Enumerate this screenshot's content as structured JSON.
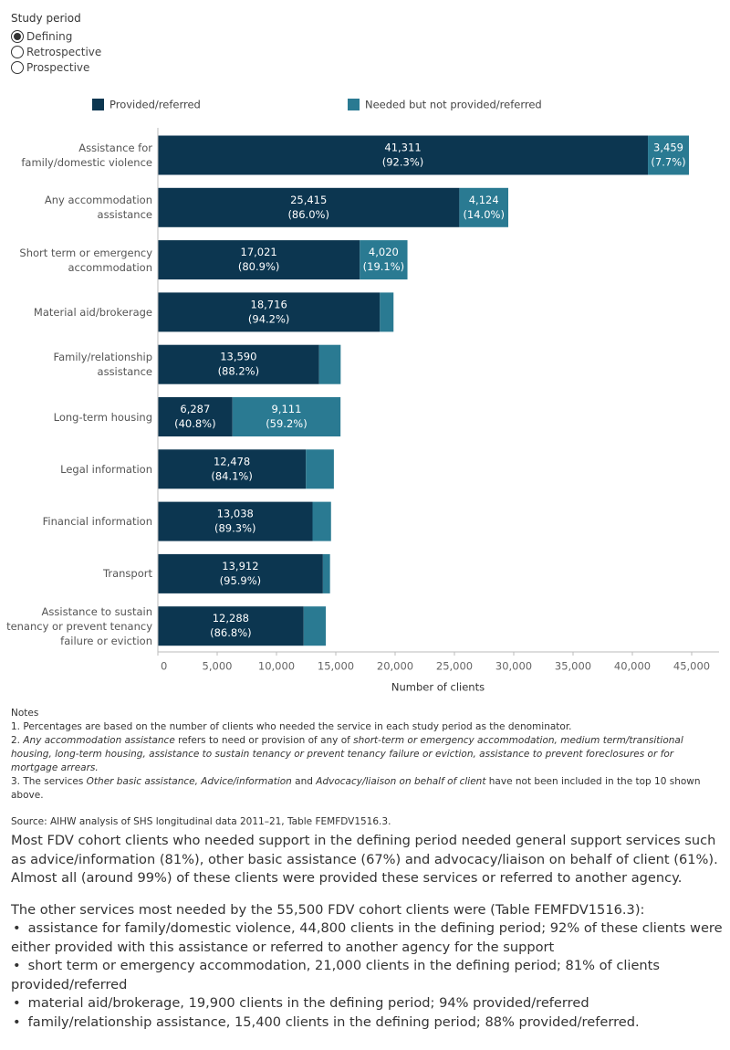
{
  "filter": {
    "title": "Study period",
    "options": [
      "Defining",
      "Retrospective",
      "Prospective"
    ],
    "selected": 0
  },
  "chart_data": {
    "type": "stacked-bar-horizontal",
    "x_label": "Number of clients",
    "categories": [
      "Assistance for family/domestic violence",
      "Any accommodation assistance",
      "Short term or emergency accommodation",
      "Material aid/brokerage",
      "Family/relationship assistance",
      "Long-term housing",
      "Legal information",
      "Financial information",
      "Transport",
      "Assistance to sustain tenancy or prevent tenancy failure or eviction"
    ],
    "series": [
      {
        "name": "Provided/referred",
        "color": "#0c3650",
        "values": [
          41311,
          25415,
          17021,
          18716,
          13590,
          6287,
          12478,
          13038,
          13912,
          12288
        ],
        "value_labels": [
          "41,311",
          "25,415",
          "17,021",
          "18,716",
          "13,590",
          "6,287",
          "12,478",
          "13,038",
          "13,912",
          "12,288"
        ],
        "percent_labels": [
          "(92.3%)",
          "(86.0%)",
          "(80.9%)",
          "(94.2%)",
          "(88.2%)",
          "(40.8%)",
          "(84.1%)",
          "(89.3%)",
          "(95.9%)",
          "(86.8%)"
        ]
      },
      {
        "name": "Needed but not provided/referred",
        "color": "#2a7a92",
        "values": [
          3459,
          4124,
          4020,
          1150,
          1820,
          9111,
          2360,
          1560,
          600,
          1870
        ],
        "value_labels": [
          "3,459",
          "4,124",
          "4,020",
          null,
          null,
          "9,111",
          null,
          null,
          null,
          null
        ],
        "percent_labels": [
          "(7.7%)",
          "(14.0%)",
          "(19.1%)",
          null,
          null,
          "(59.2%)",
          null,
          null,
          null,
          null
        ]
      }
    ],
    "xlim": [
      0,
      47000
    ],
    "xticks": [
      0,
      {
        "value": 5000,
        "label": "5,000"
      },
      {
        "value": 10000,
        "label": "10,000"
      },
      {
        "value": 15000,
        "label": "15,000"
      },
      {
        "value": 20000,
        "label": "20,000"
      },
      {
        "value": 25000,
        "label": "25,000"
      },
      {
        "value": 30000,
        "label": "30,000"
      },
      {
        "value": 35000,
        "label": "35,000"
      },
      {
        "value": 40000,
        "label": "40,000"
      },
      {
        "value": 45000,
        "label": "45,000"
      }
    ]
  },
  "notes": {
    "title": "Notes",
    "items": [
      [
        {
          "text": "1.  Percentages are based on the number of clients who needed the service in each study period as the denominator.",
          "em": false
        }
      ],
      [
        {
          "text": "2.  ",
          "em": false
        },
        {
          "text": "Any accommodation assistance",
          "em": true
        },
        {
          "text": " refers to need or provision of any of ",
          "em": false
        },
        {
          "text": "short-term or emergency accommodation, medium term/transitional housing, long-term housing, assistance to sustain tenancy or prevent tenancy failure or eviction, assistance to prevent foreclosures or for mortgage arrears.",
          "em": true
        }
      ],
      [
        {
          "text": "3.  The services ",
          "em": false
        },
        {
          "text": "Other basic assistance, Advice/information",
          "em": true
        },
        {
          "text": " and ",
          "em": false
        },
        {
          "text": "Advocacy/liaison on behalf of client",
          "em": true
        },
        {
          "text": " have not been included in the top 10 shown above.",
          "em": false
        }
      ]
    ],
    "source": "Source: AIHW analysis of SHS longitudinal data 2011–21, Table FEMFDV1516.3."
  },
  "body": {
    "paragraph": "Most FDV cohort clients who needed support in the defining period needed general support services such as advice/information (81%), other basic assistance (67%) and advocacy/liaison on behalf of client (61%). Almost all (around 99%) of these clients were provided these services or referred to another agency.",
    "intro": "The other services most needed by the 55,500 FDV cohort clients were (Table FEMFDV1516.3):",
    "bullets": [
      "assistance for family/domestic violence, 44,800 clients in the defining period; 92% of these clients were either provided with this assistance or referred to another agency for the support",
      "short term or emergency accommodation, 21,000 clients in the defining period; 81% of clients provided/referred",
      "material aid/brokerage, 19,900 clients in the defining period; 94% provided/referred",
      "family/relationship assistance, 15,400 clients in the defining period; 88% provided/referred."
    ]
  }
}
